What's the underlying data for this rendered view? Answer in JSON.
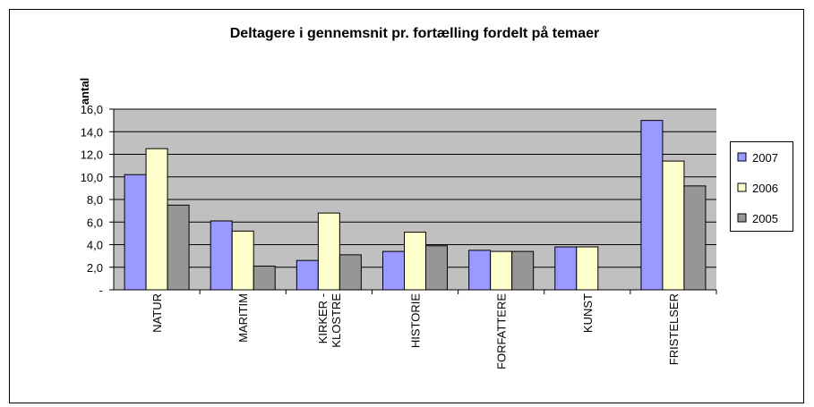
{
  "chart_data": {
    "type": "bar",
    "title": "Deltagere i gennemsnit pr. fortælling fordelt på temaer",
    "y_label": "antal",
    "categories": [
      "NATUR",
      "MARITIM",
      "KIRKER -\nKLOSTRE",
      "HISTORIE",
      "FORFATTERE",
      "KUNST",
      "FRISTELSER"
    ],
    "series": [
      {
        "name": "2007",
        "color": "#9999ff",
        "values": [
          10.2,
          6.1,
          2.6,
          3.4,
          3.5,
          3.8,
          15.0
        ]
      },
      {
        "name": "2006",
        "color": "#ffffcc",
        "values": [
          12.5,
          5.2,
          6.8,
          5.1,
          3.4,
          3.8,
          11.4
        ]
      },
      {
        "name": "2005",
        "color": "#969696",
        "values": [
          7.5,
          2.1,
          3.1,
          3.9,
          3.4,
          null,
          9.2
        ]
      }
    ],
    "ylim": [
      0,
      16
    ],
    "yticks": [
      {
        "value": 0,
        "label": "-"
      },
      {
        "value": 2,
        "label": "2,0"
      },
      {
        "value": 4,
        "label": "4,0"
      },
      {
        "value": 6,
        "label": "6,0"
      },
      {
        "value": 8,
        "label": "8,0"
      },
      {
        "value": 10,
        "label": "10,0"
      },
      {
        "value": 12,
        "label": "12,0"
      },
      {
        "value": 14,
        "label": "14,0"
      },
      {
        "value": 16,
        "label": "16,0"
      }
    ],
    "grid": true,
    "legend": "right"
  }
}
